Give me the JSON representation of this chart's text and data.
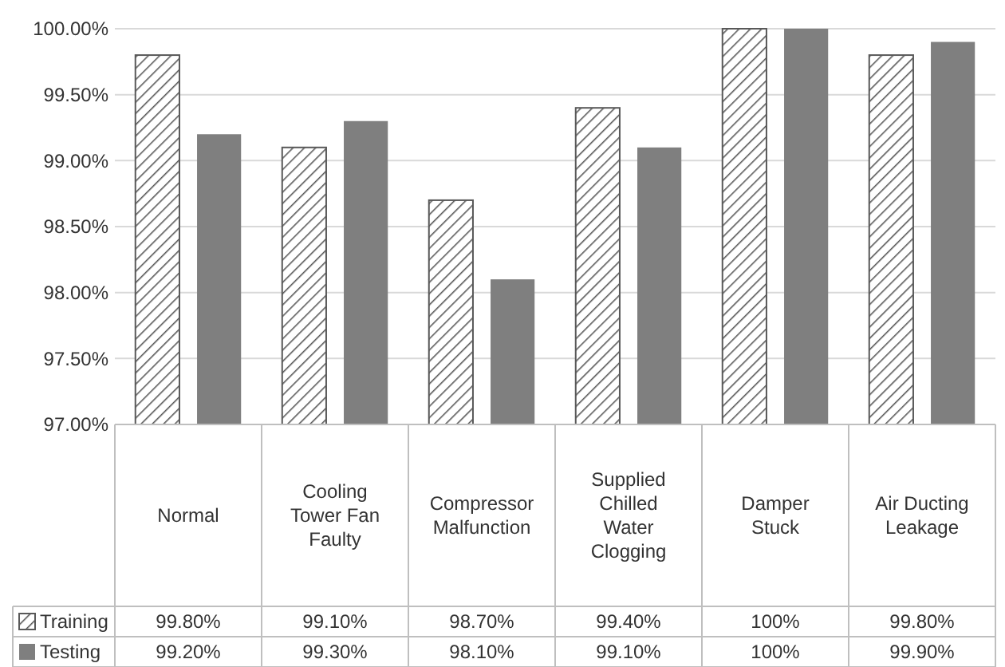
{
  "chart_data": {
    "type": "bar",
    "categories": [
      "Normal",
      "Cooling Tower Fan Faulty",
      "Compressor Malfunction",
      "Supplied Chilled Water Clogging",
      "Damper Stuck",
      "Air Ducting Leakage"
    ],
    "series": [
      {
        "name": "Training",
        "color": "#595959",
        "values": [
          99.8,
          99.1,
          98.7,
          99.4,
          100,
          99.8
        ],
        "value_labels": [
          "99.80%",
          "99.10%",
          "98.70%",
          "99.40%",
          "100%",
          "99.80%"
        ]
      },
      {
        "name": "Testing",
        "color": "#7f7f7f",
        "values": [
          99.2,
          99.3,
          98.1,
          99.1,
          100,
          99.9
        ],
        "value_labels": [
          "99.20%",
          "99.30%",
          "98.10%",
          "99.10%",
          "100%",
          "99.90%"
        ]
      }
    ],
    "ylim": [
      97,
      100
    ],
    "yticks": [
      {
        "value": 97,
        "label": "97.00%"
      },
      {
        "value": 97.5,
        "label": "97.50%"
      },
      {
        "value": 98,
        "label": "98.00%"
      },
      {
        "value": 98.5,
        "label": "98.50%"
      },
      {
        "value": 99,
        "label": "99.00%"
      },
      {
        "value": 99.5,
        "label": "99.50%"
      },
      {
        "value": 100,
        "label": "100.00%"
      }
    ],
    "grid": "y",
    "legend": "bottom left"
  }
}
